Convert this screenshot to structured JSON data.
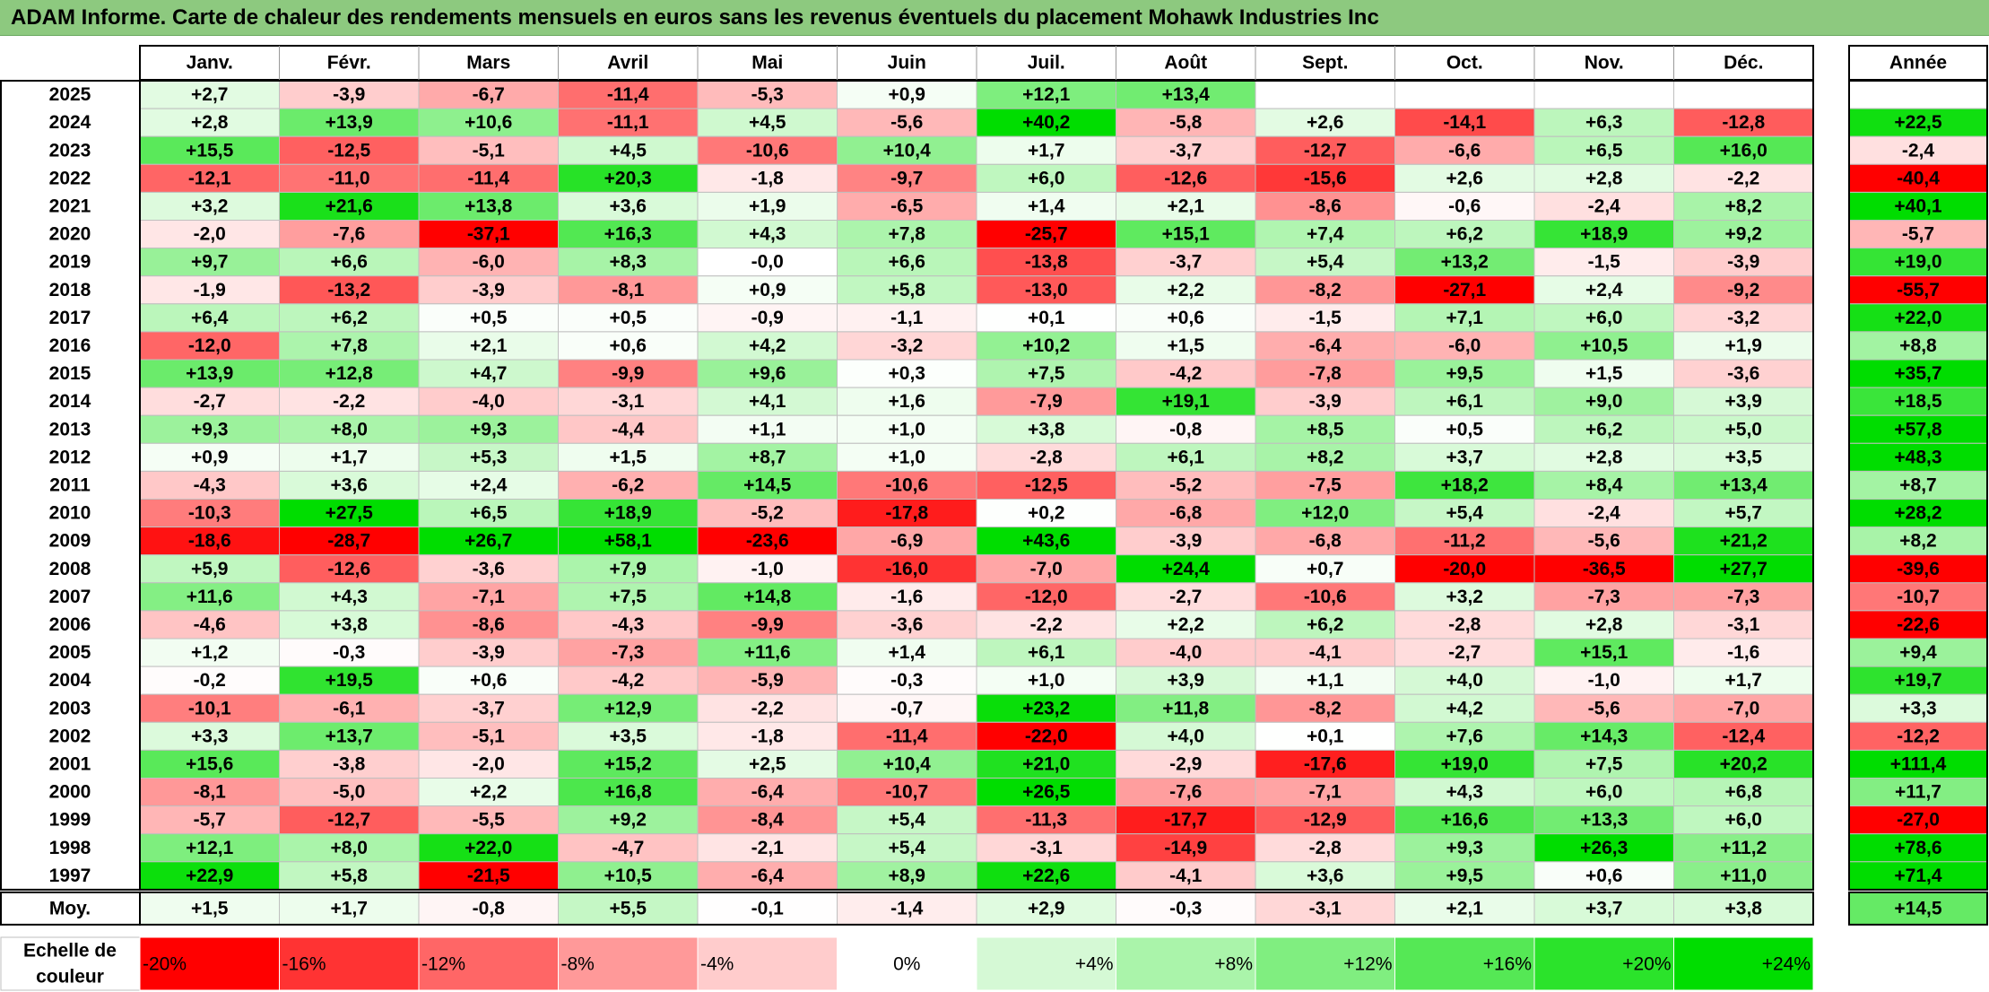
{
  "title": "ADAM Informe. Carte de chaleur des rendements mensuels en euros sans les revenus éventuels du placement Mohawk Industries Inc",
  "colors": {
    "title_bg": "#8dc97f",
    "neg_max": "#ff0000",
    "neutral": "#ffffff",
    "pos_max": "#00dd00"
  },
  "chart_data": {
    "type": "heatmap",
    "title": "ADAM Informe. Carte de chaleur des rendements mensuels en euros sans les revenus éventuels du placement Mohawk Industries Inc",
    "months": [
      "Janv.",
      "Févr.",
      "Mars",
      "Avril",
      "Mai",
      "Juin",
      "Juil.",
      "Août",
      "Sept.",
      "Oct.",
      "Nov.",
      "Déc."
    ],
    "year_header": "Année",
    "rows": [
      {
        "year": "2025",
        "values": [
          2.7,
          -3.9,
          -6.7,
          -11.4,
          -5.3,
          0.9,
          12.1,
          13.4,
          null,
          null,
          null,
          null
        ],
        "annual": null
      },
      {
        "year": "2024",
        "values": [
          2.8,
          13.9,
          10.6,
          -11.1,
          4.5,
          -5.6,
          40.2,
          -5.8,
          2.6,
          -14.1,
          6.3,
          -12.8
        ],
        "annual": 22.5
      },
      {
        "year": "2023",
        "values": [
          15.5,
          -12.5,
          -5.1,
          4.5,
          -10.6,
          10.4,
          1.7,
          -3.7,
          -12.7,
          -6.6,
          6.5,
          16.0
        ],
        "annual": -2.4
      },
      {
        "year": "2022",
        "values": [
          -12.1,
          -11.0,
          -11.4,
          20.3,
          -1.8,
          -9.7,
          6.0,
          -12.6,
          -15.6,
          2.6,
          2.8,
          -2.2
        ],
        "annual": -40.4
      },
      {
        "year": "2021",
        "values": [
          3.2,
          21.6,
          13.8,
          3.6,
          1.9,
          -6.5,
          1.4,
          2.1,
          -8.6,
          -0.6,
          -2.4,
          8.2
        ],
        "annual": 40.1
      },
      {
        "year": "2020",
        "values": [
          -2.0,
          -7.6,
          -37.1,
          16.3,
          4.3,
          7.8,
          -25.7,
          15.1,
          7.4,
          6.2,
          18.9,
          9.2
        ],
        "annual": -5.7
      },
      {
        "year": "2019",
        "values": [
          9.7,
          6.6,
          -6.0,
          8.3,
          -0.0,
          6.6,
          -13.8,
          -3.7,
          5.4,
          13.2,
          -1.5,
          -3.9
        ],
        "annual": 19.0
      },
      {
        "year": "2018",
        "values": [
          -1.9,
          -13.2,
          -3.9,
          -8.1,
          0.9,
          5.8,
          -13.0,
          2.2,
          -8.2,
          -27.1,
          2.4,
          -9.2
        ],
        "annual": -55.7
      },
      {
        "year": "2017",
        "values": [
          6.4,
          6.2,
          0.5,
          0.5,
          -0.9,
          -1.1,
          0.1,
          0.6,
          -1.5,
          7.1,
          6.0,
          -3.2
        ],
        "annual": 22.0
      },
      {
        "year": "2016",
        "values": [
          -12.0,
          7.8,
          2.1,
          0.6,
          4.2,
          -3.2,
          10.2,
          1.5,
          -6.4,
          -6.0,
          10.5,
          1.9
        ],
        "annual": 8.8
      },
      {
        "year": "2015",
        "values": [
          13.9,
          12.8,
          4.7,
          -9.9,
          9.6,
          0.3,
          7.5,
          -4.2,
          -7.8,
          9.5,
          1.5,
          -3.6
        ],
        "annual": 35.7
      },
      {
        "year": "2014",
        "values": [
          -2.7,
          -2.2,
          -4.0,
          -3.1,
          4.1,
          1.6,
          -7.9,
          19.1,
          -3.9,
          6.1,
          9.0,
          3.9
        ],
        "annual": 18.5
      },
      {
        "year": "2013",
        "values": [
          9.3,
          8.0,
          9.3,
          -4.4,
          1.1,
          1.0,
          3.8,
          -0.8,
          8.5,
          0.5,
          6.2,
          5.0
        ],
        "annual": 57.8
      },
      {
        "year": "2012",
        "values": [
          0.9,
          1.7,
          5.3,
          1.5,
          8.7,
          1.0,
          -2.8,
          6.1,
          8.2,
          3.7,
          2.8,
          3.5
        ],
        "annual": 48.3
      },
      {
        "year": "2011",
        "values": [
          -4.3,
          3.6,
          2.4,
          -6.2,
          14.5,
          -10.6,
          -12.5,
          -5.2,
          -7.5,
          18.2,
          8.4,
          13.4
        ],
        "annual": 8.7
      },
      {
        "year": "2010",
        "values": [
          -10.3,
          27.5,
          6.5,
          18.9,
          -5.2,
          -17.8,
          0.2,
          -6.8,
          12.0,
          5.4,
          -2.4,
          5.7
        ],
        "annual": 28.2
      },
      {
        "year": "2009",
        "values": [
          -18.6,
          -28.7,
          26.7,
          58.1,
          -23.6,
          -6.9,
          43.6,
          -3.9,
          -6.8,
          -11.2,
          -5.6,
          21.2
        ],
        "annual": 8.2
      },
      {
        "year": "2008",
        "values": [
          5.9,
          -12.6,
          -3.6,
          7.9,
          -1.0,
          -16.0,
          -7.0,
          24.4,
          0.7,
          -20.0,
          -36.5,
          27.7
        ],
        "annual": -39.6
      },
      {
        "year": "2007",
        "values": [
          11.6,
          4.3,
          -7.1,
          7.5,
          14.8,
          -1.6,
          -12.0,
          -2.7,
          -10.6,
          3.2,
          -7.3,
          -7.3
        ],
        "annual": -10.7
      },
      {
        "year": "2006",
        "values": [
          -4.6,
          3.8,
          -8.6,
          -4.3,
          -9.9,
          -3.6,
          -2.2,
          2.2,
          6.2,
          -2.8,
          2.8,
          -3.1
        ],
        "annual": -22.6
      },
      {
        "year": "2005",
        "values": [
          1.2,
          -0.3,
          -3.9,
          -7.3,
          11.6,
          1.4,
          6.1,
          -4.0,
          -4.1,
          -2.7,
          15.1,
          -1.6
        ],
        "annual": 9.4
      },
      {
        "year": "2004",
        "values": [
          -0.2,
          19.5,
          0.6,
          -4.2,
          -5.9,
          -0.3,
          1.0,
          3.9,
          1.1,
          4.0,
          -1.0,
          1.7
        ],
        "annual": 19.7
      },
      {
        "year": "2003",
        "values": [
          -10.1,
          -6.1,
          -3.7,
          12.9,
          -2.2,
          -0.7,
          23.2,
          11.8,
          -8.2,
          4.2,
          -5.6,
          -7.0
        ],
        "annual": 3.3
      },
      {
        "year": "2002",
        "values": [
          3.3,
          13.7,
          -5.1,
          3.5,
          -1.8,
          -11.4,
          -22.0,
          4.0,
          0.1,
          7.6,
          14.3,
          -12.4
        ],
        "annual": -12.2
      },
      {
        "year": "2001",
        "values": [
          15.6,
          -3.8,
          -2.0,
          15.2,
          2.5,
          10.4,
          21.0,
          -2.9,
          -17.6,
          19.0,
          7.5,
          20.2
        ],
        "annual": 111.4
      },
      {
        "year": "2000",
        "values": [
          -8.1,
          -5.0,
          2.2,
          16.8,
          -6.4,
          -10.7,
          26.5,
          -7.6,
          -7.1,
          4.3,
          6.0,
          6.8
        ],
        "annual": 11.7
      },
      {
        "year": "1999",
        "values": [
          -5.7,
          -12.7,
          -5.5,
          9.2,
          -8.4,
          5.4,
          -11.3,
          -17.7,
          -12.9,
          16.6,
          13.3,
          6.0
        ],
        "annual": -27.0
      },
      {
        "year": "1998",
        "values": [
          12.1,
          8.0,
          22.0,
          -4.7,
          -2.1,
          5.4,
          -3.1,
          -14.9,
          -2.8,
          9.3,
          26.3,
          11.2
        ],
        "annual": 78.6
      },
      {
        "year": "1997",
        "values": [
          22.9,
          5.8,
          -21.5,
          10.5,
          -6.4,
          8.9,
          22.6,
          -4.1,
          3.6,
          9.5,
          0.6,
          11.0
        ],
        "annual": 71.4
      }
    ],
    "average": {
      "label": "Moy.",
      "values": [
        1.5,
        1.7,
        -0.8,
        5.5,
        -0.1,
        -1.4,
        2.9,
        -0.3,
        -3.1,
        2.1,
        3.7,
        3.8
      ],
      "annual": 14.5
    },
    "scale": {
      "label_line1": "Echelle de",
      "label_line2": "couleur",
      "steps": [
        "-20%",
        "-16%",
        "-12%",
        "-8%",
        "-4%",
        "0%",
        "+4%",
        "+8%",
        "+12%",
        "+16%",
        "+20%",
        "+24%"
      ],
      "values": [
        -20,
        -16,
        -12,
        -8,
        -4,
        0,
        4,
        8,
        12,
        16,
        20,
        24
      ]
    }
  }
}
